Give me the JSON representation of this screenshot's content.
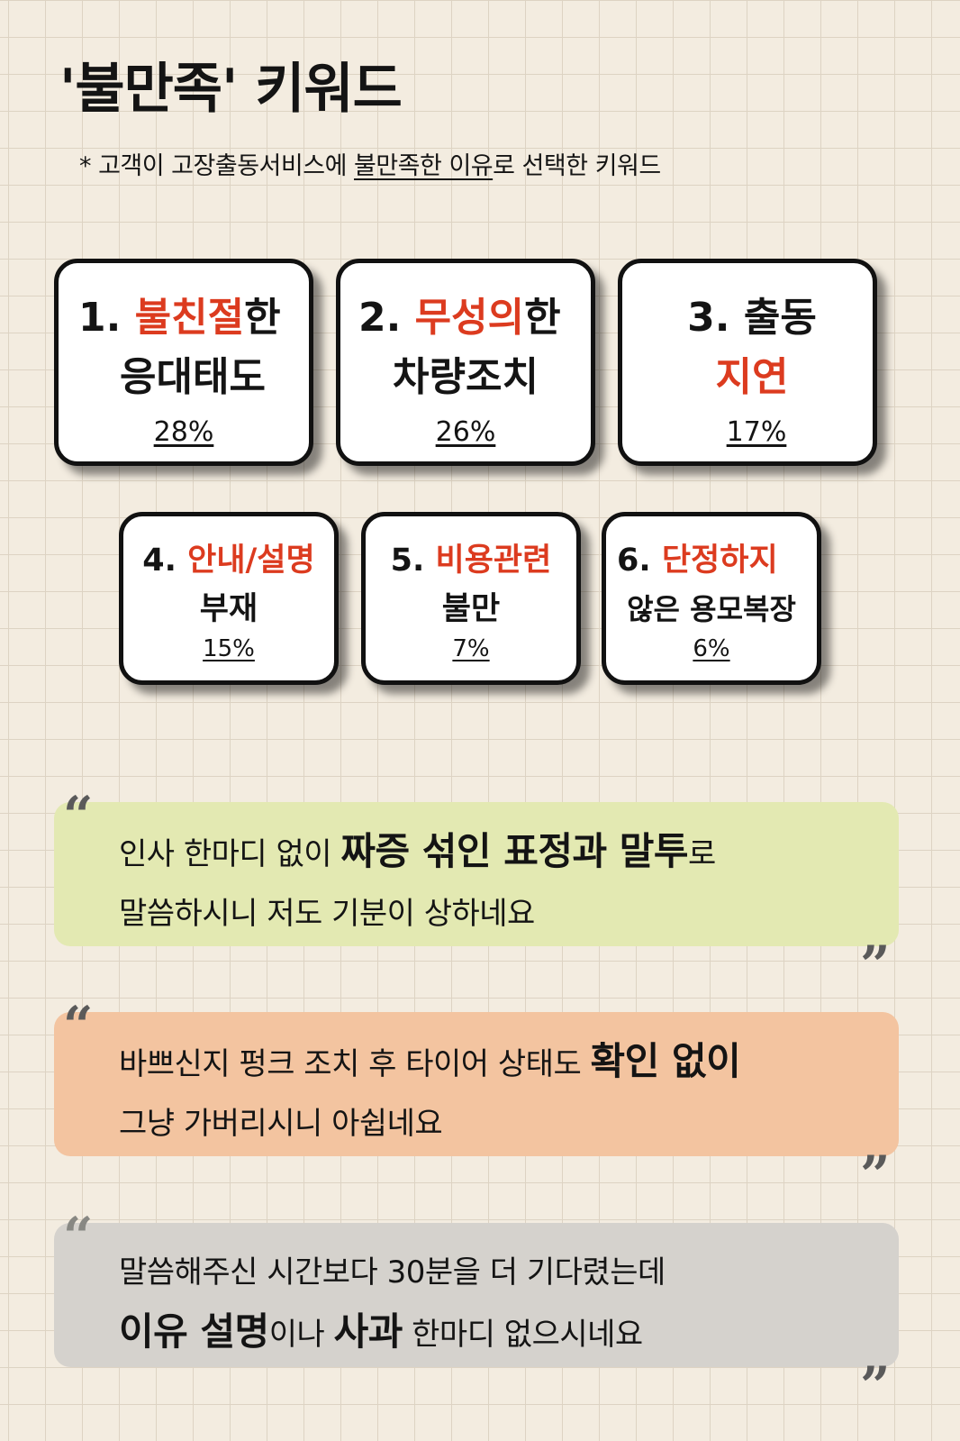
{
  "title": "'불만족' 키워드",
  "subtitle": {
    "prefix": "* 고객이 고장출동서비스에 ",
    "underlined": "불만족한 이유",
    "suffix": "로 선택한 키워드"
  },
  "keywords": [
    {
      "num": "1.",
      "red": "불친절",
      "rest1": "한",
      "line2": "응대태도",
      "percent": "28%"
    },
    {
      "num": "2.",
      "red": "무성의",
      "rest1": "한",
      "line2": "차량조치",
      "percent": "26%"
    },
    {
      "num": "3.",
      "line1": "출동",
      "red2": "지연",
      "percent": "17%"
    },
    {
      "num": "4.",
      "red": "안내/설명",
      "line2": "부재",
      "percent": "15%"
    },
    {
      "num": "5.",
      "red": "비용관련",
      "line2": "불만",
      "percent": "7%"
    },
    {
      "num": "6.",
      "red": "단정하지",
      "line2": "않은 용모복장",
      "percent": "6%"
    }
  ],
  "quotes": [
    {
      "a": "인사 한마디 없이 ",
      "b": "짜증 섞인 표정과 말투",
      "c": "로",
      "line2": "말씀하시니 저도 기분이 상하네요"
    },
    {
      "a": "바쁘신지 펑크 조치 후 타이어 상태도 ",
      "b": "확인 없이",
      "line2": "그냥 가버리시니 아쉽네요"
    },
    {
      "line1": "말씀해주신 시간보다 30분을 더 기다렸는데",
      "b1": "이유 설명",
      "m": "이나 ",
      "b2": "사과",
      "e": " 한마디 없으시네요"
    }
  ],
  "quote_marks": {
    "open": "“",
    "close": "”"
  }
}
